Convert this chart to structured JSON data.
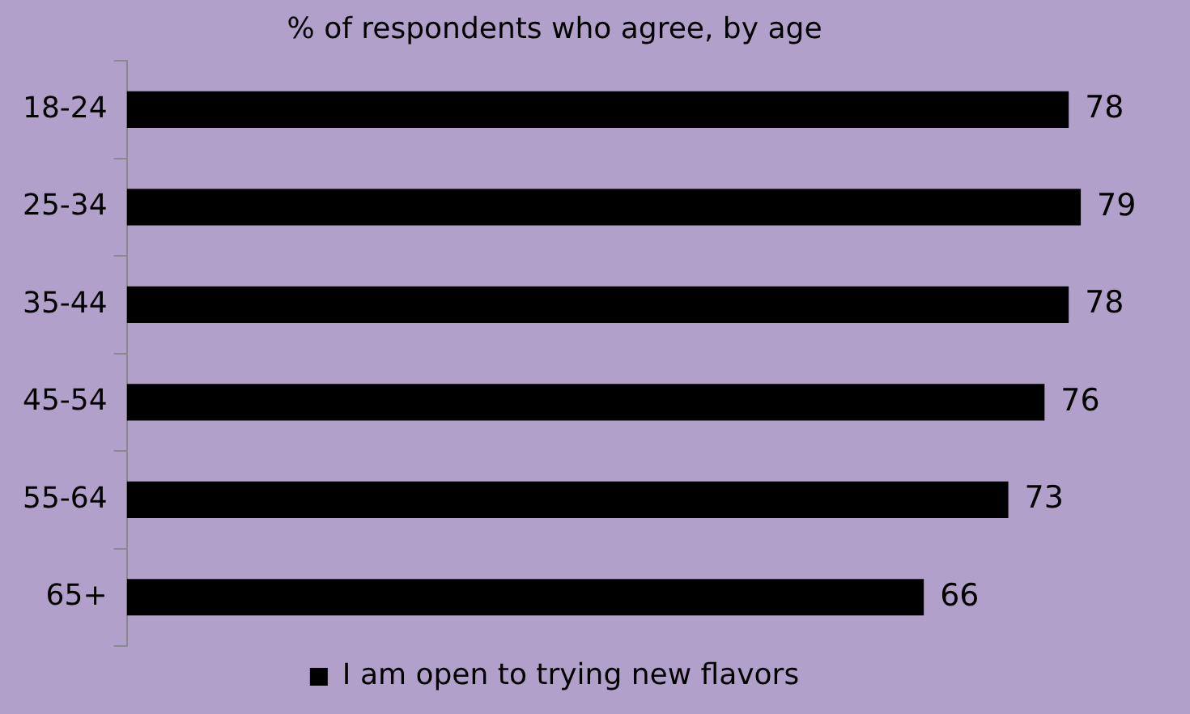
{
  "chart_data": {
    "type": "bar",
    "orientation": "horizontal",
    "title": "% of respondents who agree, by age",
    "categories": [
      "18-24",
      "25-34",
      "35-44",
      "45-54",
      "55-64",
      "65+"
    ],
    "series": [
      {
        "name": "I am open to trying new flavors",
        "color": "#000000",
        "values": [
          78,
          79,
          78,
          76,
          73,
          66
        ]
      }
    ],
    "data_labels": true,
    "legend": "bottom"
  }
}
